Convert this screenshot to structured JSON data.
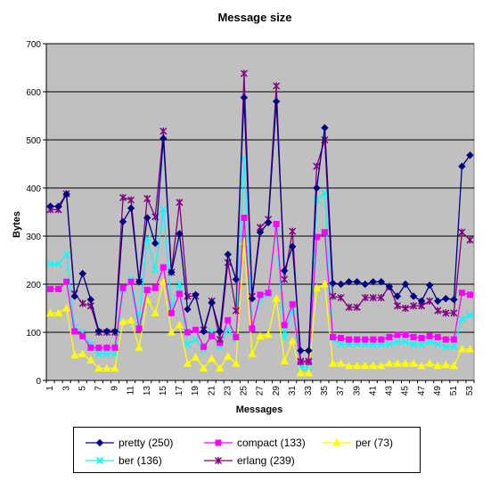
{
  "chart_data": {
    "type": "line",
    "title": "Message size",
    "xlabel": "Messages",
    "ylabel": "Bytes",
    "ylim": [
      0,
      700
    ],
    "yticks": [
      0,
      100,
      200,
      300,
      400,
      500,
      600,
      700
    ],
    "x": [
      1,
      2,
      3,
      4,
      5,
      6,
      7,
      8,
      9,
      10,
      11,
      12,
      13,
      14,
      15,
      16,
      17,
      18,
      19,
      20,
      21,
      22,
      23,
      24,
      25,
      26,
      27,
      28,
      29,
      30,
      31,
      32,
      33,
      34,
      35,
      36,
      37,
      38,
      39,
      40,
      41,
      42,
      43,
      44,
      45,
      46,
      47,
      48,
      49,
      50,
      51,
      52,
      53
    ],
    "xticks": [
      1,
      3,
      5,
      7,
      9,
      11,
      13,
      15,
      17,
      19,
      21,
      23,
      25,
      27,
      29,
      31,
      33,
      35,
      37,
      39,
      41,
      43,
      45,
      47,
      49,
      51,
      53
    ],
    "grid": true,
    "plot_background": "#c0c0c0",
    "legend_position": "bottom",
    "series": [
      {
        "name": "pretty (250)",
        "color": "#000080",
        "marker": "diamond",
        "values": [
          362,
          362,
          387,
          175,
          222,
          168,
          102,
          102,
          102,
          330,
          358,
          205,
          338,
          285,
          503,
          225,
          305,
          148,
          178,
          102,
          162,
          102,
          262,
          210,
          588,
          170,
          308,
          328,
          580,
          228,
          278,
          62,
          62,
          400,
          525,
          202,
          200,
          205,
          205,
          200,
          205,
          205,
          195,
          175,
          200,
          175,
          165,
          198,
          165,
          170,
          168,
          445,
          468
        ]
      },
      {
        "name": "compact (133)",
        "color": "#ff00ff",
        "marker": "square",
        "values": [
          190,
          190,
          205,
          102,
          92,
          68,
          68,
          68,
          68,
          192,
          205,
          108,
          188,
          192,
          235,
          140,
          180,
          100,
          105,
          70,
          92,
          78,
          125,
          90,
          338,
          108,
          178,
          182,
          325,
          115,
          158,
          38,
          38,
          298,
          308,
          90,
          88,
          85,
          85,
          85,
          85,
          85,
          90,
          95,
          95,
          90,
          88,
          92,
          90,
          85,
          85,
          182,
          178
        ]
      },
      {
        "name": "per (73)",
        "color": "#ffff00",
        "marker": "triangle",
        "values": [
          140,
          140,
          150,
          52,
          55,
          42,
          25,
          25,
          25,
          122,
          125,
          68,
          168,
          140,
          205,
          100,
          115,
          35,
          48,
          25,
          45,
          25,
          50,
          35,
          288,
          55,
          92,
          95,
          170,
          40,
          82,
          15,
          15,
          192,
          200,
          35,
          35,
          30,
          30,
          30,
          30,
          30,
          35,
          35,
          35,
          35,
          30,
          35,
          30,
          32,
          30,
          65,
          65
        ]
      },
      {
        "name": "ber (136)",
        "color": "#00ffff",
        "marker": "x",
        "values": [
          242,
          242,
          262,
          110,
          100,
          75,
          55,
          55,
          55,
          188,
          210,
          125,
          295,
          230,
          355,
          155,
          200,
          75,
          85,
          65,
          100,
          70,
          105,
          85,
          462,
          108,
          170,
          180,
          320,
          90,
          150,
          28,
          28,
          375,
          390,
          85,
          75,
          75,
          75,
          75,
          75,
          75,
          75,
          80,
          80,
          75,
          75,
          80,
          75,
          70,
          70,
          128,
          135
        ]
      },
      {
        "name": "erlang (239)",
        "color": "#800080",
        "marker": "star",
        "values": [
          355,
          355,
          388,
          180,
          160,
          155,
          100,
          100,
          100,
          380,
          375,
          205,
          378,
          340,
          518,
          225,
          370,
          175,
          175,
          105,
          165,
          85,
          245,
          145,
          638,
          175,
          318,
          335,
          612,
          210,
          310,
          40,
          40,
          445,
          500,
          175,
          172,
          152,
          152,
          172,
          172,
          172,
          195,
          155,
          150,
          155,
          155,
          165,
          145,
          140,
          140,
          308,
          292
        ]
      }
    ]
  }
}
